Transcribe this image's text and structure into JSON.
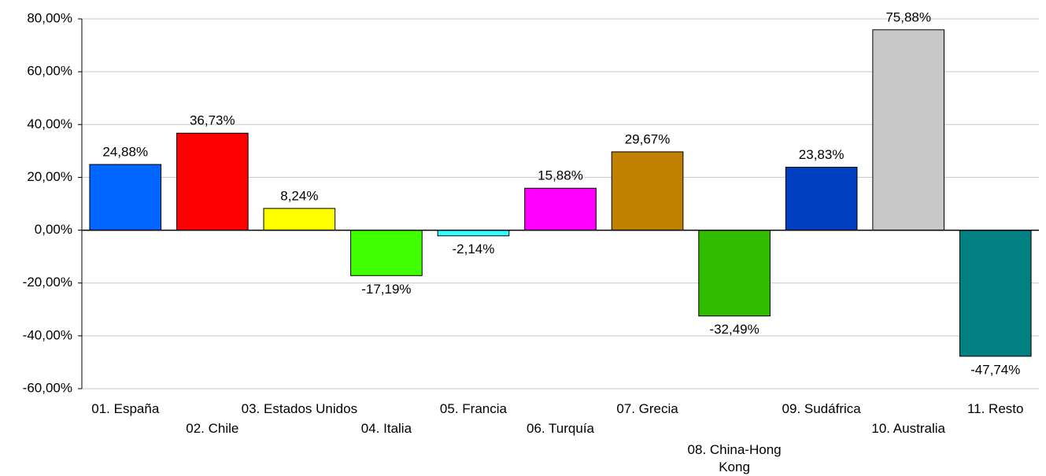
{
  "chart_data": {
    "type": "bar",
    "categories": [
      "01. España",
      "02. Chile",
      "03. Estados Unidos",
      "04. Italia",
      "05. Francia",
      "06. Turquía",
      "07. Grecia",
      "08. China-Hong Kong",
      "09. Sudáfrica",
      "10. Australia",
      "11. Resto"
    ],
    "values": [
      24.88,
      36.73,
      8.24,
      -17.19,
      -2.14,
      15.88,
      29.67,
      -32.49,
      23.83,
      75.88,
      -47.74
    ],
    "value_labels": [
      "24,88%",
      "36,73%",
      "8,24%",
      "-17,19%",
      "-2,14%",
      "15,88%",
      "29,67%",
      "-32,49%",
      "23,83%",
      "75,88%",
      "-47,74%"
    ],
    "colors": [
      "#0066ff",
      "#ff0000",
      "#ffff00",
      "#40ff00",
      "#33ffff",
      "#ff00ff",
      "#c08000",
      "#33bb00",
      "#0040c0",
      "#c8c8c8",
      "#008080"
    ],
    "ylim": [
      -60,
      80
    ],
    "yticks": [
      {
        "value": -60,
        "label": "-60,00%"
      },
      {
        "value": -40,
        "label": "-40,00%"
      },
      {
        "value": -20,
        "label": "-20,00%"
      },
      {
        "value": 0,
        "label": "0,00%"
      },
      {
        "value": 20,
        "label": "20,00%"
      },
      {
        "value": 40,
        "label": "40,00%"
      },
      {
        "value": 60,
        "label": "60,00%"
      },
      {
        "value": 80,
        "label": "80,00%"
      }
    ],
    "grid": true
  }
}
